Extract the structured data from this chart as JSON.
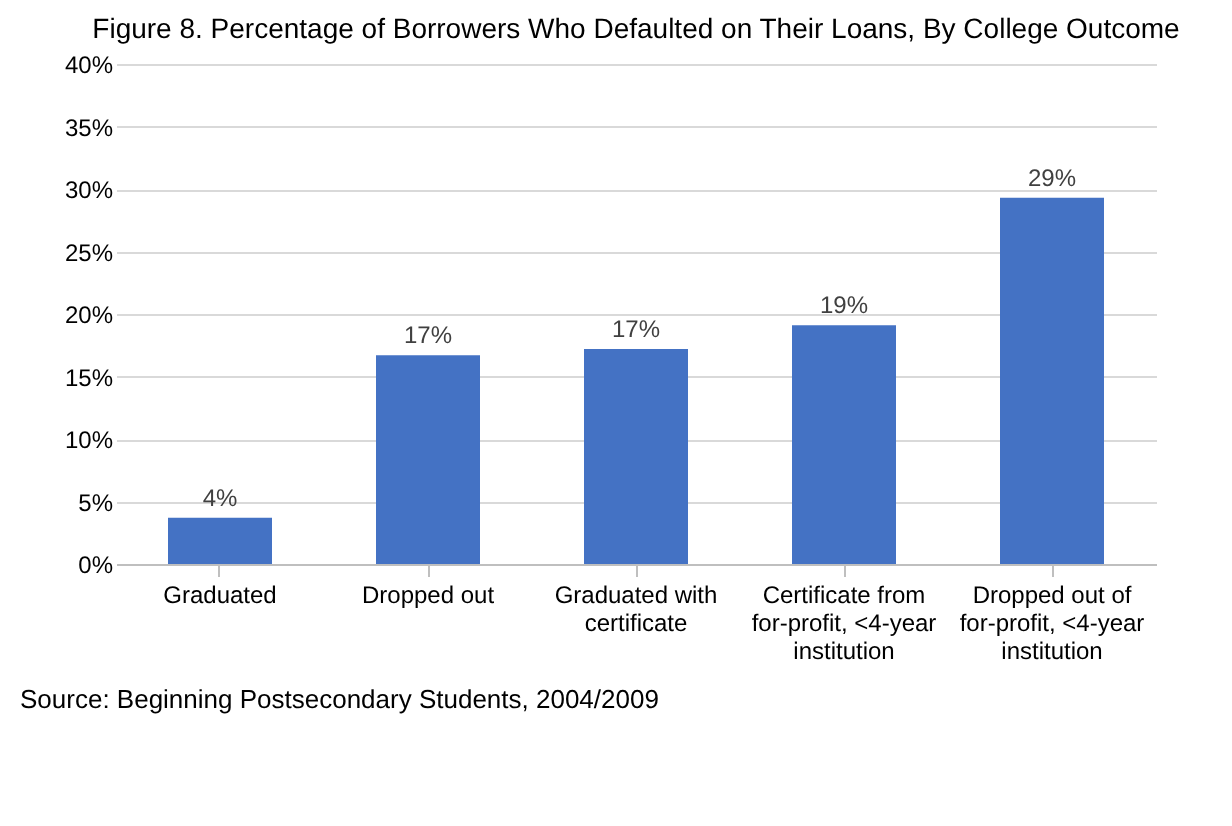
{
  "chart_data": {
    "type": "bar",
    "title": "Figure 8. Percentage of Borrowers Who Defaulted on Their Loans, By College Outcome",
    "categories": [
      "Graduated",
      "Dropped out",
      "Graduated with certificate",
      "Certificate from for-profit, <4-year institution",
      "Dropped out of for-profit, <4-year institution"
    ],
    "values": [
      3.7,
      16.7,
      17.2,
      19.1,
      29.3
    ],
    "value_labels": [
      "4%",
      "17%",
      "17%",
      "19%",
      "29%"
    ],
    "color": "#4472c4",
    "ylim": [
      0,
      40
    ],
    "yticks": [
      {
        "value": 0,
        "label": "0%"
      },
      {
        "value": 5,
        "label": "5%"
      },
      {
        "value": 10,
        "label": "10%"
      },
      {
        "value": 15,
        "label": "15%"
      },
      {
        "value": 20,
        "label": "20%"
      },
      {
        "value": 25,
        "label": "25%"
      },
      {
        "value": 30,
        "label": "30%"
      },
      {
        "value": 35,
        "label": "35%"
      },
      {
        "value": 40,
        "label": "40%"
      }
    ],
    "grid": "y",
    "annotations": [
      "Source: Beginning Postsecondary Students, 2004/2009"
    ]
  }
}
